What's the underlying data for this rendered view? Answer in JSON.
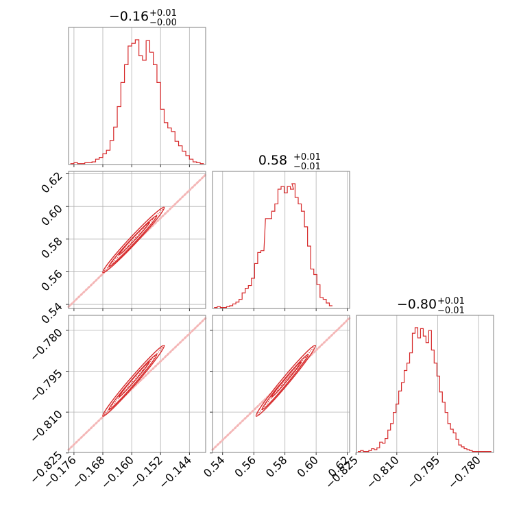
{
  "colors": {
    "main": "#d62728",
    "scatter": "#f4b6b6",
    "frame": "#7f7f7f",
    "grid": "#b0b0b0"
  },
  "chart_data": [
    {
      "type": "histogram",
      "panel": "a-hist",
      "title": {
        "value": "−0.16",
        "plus": "+0.01",
        "minus": "−0.00"
      },
      "grid": true,
      "xlim": [
        -0.1775,
        -0.1395
      ],
      "bin_centers": [
        -0.1765,
        -0.1755,
        -0.1745,
        -0.1735,
        -0.1725,
        -0.1715,
        -0.1705,
        -0.1695,
        -0.1685,
        -0.1675,
        -0.1665,
        -0.1655,
        -0.1645,
        -0.1635,
        -0.1625,
        -0.1615,
        -0.1605,
        -0.1595,
        -0.1585,
        -0.1575,
        -0.1565,
        -0.1555,
        -0.1545,
        -0.1535,
        -0.1525,
        -0.1515,
        -0.1505,
        -0.1495,
        -0.1485,
        -0.1475,
        -0.1465,
        -0.1455,
        -0.1445,
        -0.1435,
        -0.1425,
        -0.1415,
        -0.1405
      ],
      "counts": [
        1,
        2,
        1,
        1,
        2,
        2,
        3,
        6,
        8,
        12,
        16,
        27,
        42,
        65,
        92,
        112,
        133,
        136,
        140,
        122,
        117,
        139,
        126,
        112,
        92,
        62,
        47,
        41,
        37,
        26,
        21,
        15,
        10,
        6,
        3,
        2,
        1
      ]
    },
    {
      "type": "histogram",
      "panel": "b-hist",
      "title": {
        "value": "0.58",
        "plus": "+0.01",
        "minus": "−0.01"
      },
      "grid": true,
      "xlim": [
        0.5335,
        0.6215
      ],
      "bin_centers": [
        0.5355,
        0.5375,
        0.5395,
        0.5415,
        0.5435,
        0.5455,
        0.5475,
        0.5495,
        0.5515,
        0.5535,
        0.5555,
        0.5575,
        0.5595,
        0.5615,
        0.5635,
        0.5655,
        0.5685,
        0.5705,
        0.5725,
        0.5745,
        0.5765,
        0.5785,
        0.5805,
        0.5825,
        0.5845,
        0.5855,
        0.5875,
        0.5895,
        0.5915,
        0.5935,
        0.5955,
        0.5975,
        0.5995,
        0.6015,
        0.6035,
        0.6055,
        0.6075,
        0.6095
      ],
      "counts": [
        1,
        2,
        1,
        1,
        2,
        3,
        5,
        7,
        10,
        17,
        22,
        25,
        33,
        49,
        61,
        63,
        98,
        98,
        106,
        114,
        130,
        133,
        126,
        133,
        130,
        136,
        121,
        114,
        106,
        89,
        68,
        43,
        37,
        26,
        12,
        10,
        6,
        3
      ]
    },
    {
      "type": "histogram",
      "panel": "c-hist",
      "title": {
        "value": "−0.80",
        "plus": "+0.01",
        "minus": "−0.01"
      },
      "grid": true,
      "xlim": [
        -0.8248,
        -0.7745
      ],
      "bin_centers": [
        -0.8238,
        -0.8228,
        -0.8218,
        -0.8208,
        -0.8198,
        -0.8188,
        -0.8178,
        -0.8168,
        -0.8158,
        -0.8148,
        -0.8138,
        -0.8128,
        -0.8118,
        -0.8108,
        -0.8098,
        -0.8088,
        -0.8078,
        -0.8068,
        -0.8058,
        -0.8048,
        -0.8038,
        -0.8028,
        -0.8018,
        -0.8008,
        -0.7998,
        -0.7988,
        -0.7978,
        -0.7968,
        -0.7958,
        -0.7948,
        -0.7938,
        -0.7928,
        -0.7918,
        -0.7908,
        -0.7898,
        -0.7888,
        -0.7878,
        -0.7868,
        -0.7858,
        -0.7848,
        -0.7838,
        -0.7828,
        -0.7818,
        -0.7808,
        -0.7798,
        -0.7788,
        -0.7778,
        -0.7768,
        -0.7758
      ],
      "counts": [
        1,
        2,
        1,
        1,
        2,
        4,
        3,
        5,
        11,
        10,
        15,
        24,
        31,
        43,
        52,
        66,
        75,
        88,
        96,
        107,
        128,
        134,
        123,
        133,
        125,
        118,
        131,
        110,
        96,
        82,
        65,
        54,
        43,
        31,
        25,
        21,
        14,
        8,
        6,
        4,
        3,
        2,
        1,
        1,
        1,
        1,
        1,
        1,
        1
      ]
    },
    {
      "type": "scatter",
      "panel": "ab-joint",
      "xlim": [
        -0.1775,
        -0.1395
      ],
      "ylim": [
        0.5375,
        0.6215
      ],
      "grid": true,
      "band": {
        "x": [
          -0.1775,
          -0.1395
        ],
        "y": [
          0.5385,
          0.6195
        ]
      },
      "contour_center": [
        -0.1595,
        0.5795
      ],
      "contour_extent": {
        "x": [
          -0.1665,
          -0.1495
        ],
        "y": [
          0.5635,
          0.6035
        ]
      }
    },
    {
      "type": "scatter",
      "panel": "ac-joint",
      "xlim": [
        -0.1775,
        -0.1395
      ],
      "ylim": [
        -0.8248,
        -0.7745
      ],
      "grid": true,
      "band": {
        "x": [
          -0.1775,
          -0.1395
        ],
        "y": [
          -0.8238,
          -0.7755
        ]
      },
      "contour_center": [
        -0.1595,
        -0.7985
      ],
      "contour_extent": {
        "x": [
          -0.1665,
          -0.1495
        ],
        "y": [
          -0.8115,
          -0.7855
        ]
      }
    },
    {
      "type": "scatter",
      "panel": "bc-joint",
      "xlim": [
        0.5335,
        0.6215
      ],
      "ylim": [
        -0.8248,
        -0.7745
      ],
      "grid": true,
      "band": {
        "x": [
          0.5335,
          0.6215
        ],
        "y": [
          -0.8238,
          -0.7755
        ]
      },
      "contour_center": [
        0.5805,
        -0.7985
      ],
      "contour_extent": {
        "x": [
          0.5635,
          0.6015
        ],
        "y": [
          -0.8115,
          -0.7855
        ]
      }
    }
  ],
  "axes": {
    "a": {
      "ticks": [
        -0.176,
        -0.168,
        -0.16,
        -0.152,
        -0.144
      ],
      "labels": [
        "−0.176",
        "−0.168",
        "−0.160",
        "−0.152",
        "−0.144"
      ]
    },
    "b_x": {
      "ticks": [
        0.54,
        0.56,
        0.58,
        0.6,
        0.62
      ],
      "labels": [
        "0.54",
        "0.56",
        "0.58",
        "0.60",
        "0.62"
      ]
    },
    "b_y": {
      "ticks": [
        0.54,
        0.56,
        0.58,
        0.6,
        0.62
      ],
      "labels": [
        "0.54",
        "0.56",
        "0.58",
        "0.60",
        "0.62"
      ]
    },
    "c_x": {
      "ticks": [
        -0.825,
        -0.81,
        -0.795,
        -0.78
      ],
      "labels": [
        "−0.825",
        "−0.810",
        "−0.795",
        "−0.780"
      ]
    },
    "c_y": {
      "ticks": [
        -0.825,
        -0.81,
        -0.795,
        -0.78
      ],
      "labels": [
        "−0.825",
        "−0.810",
        "−0.795",
        "−0.780"
      ]
    }
  }
}
